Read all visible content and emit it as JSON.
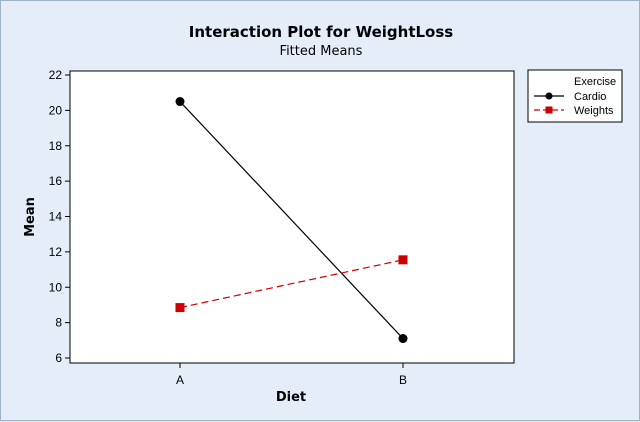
{
  "chart_data": {
    "type": "line",
    "title": "Interaction Plot for WeightLoss",
    "subtitle": "Fitted Means",
    "xlabel": "Diet",
    "ylabel": "Mean",
    "categories": [
      "A",
      "B"
    ],
    "ylim": [
      6,
      22
    ],
    "yticks": [
      6,
      8,
      10,
      12,
      14,
      16,
      18,
      20,
      22
    ],
    "grid": false,
    "legend": {
      "title": "Exercise",
      "position": "right"
    },
    "series": [
      {
        "name": "Cardio",
        "values": [
          20.5,
          7.1
        ],
        "color": "#000000",
        "marker": "circle",
        "line_style": "solid"
      },
      {
        "name": "Weights",
        "values": [
          8.85,
          11.55
        ],
        "color": "#cc0000",
        "marker": "square",
        "line_style": "dashed"
      }
    ]
  }
}
